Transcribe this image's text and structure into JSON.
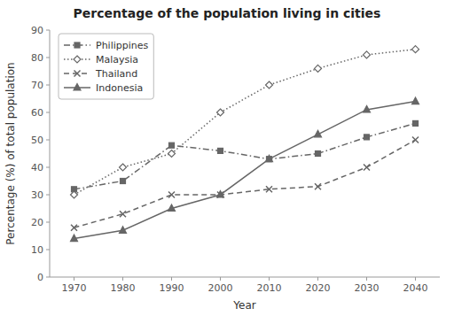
{
  "chart_data": {
    "type": "line",
    "title": "Percentage of the population living in cities",
    "xlabel": "Year",
    "ylabel": "Percentage (%) of total population",
    "x": [
      1970,
      1980,
      1990,
      2000,
      2010,
      2020,
      2030,
      2040
    ],
    "xlim": [
      1965,
      2045
    ],
    "xticks": [
      1970,
      1980,
      1990,
      2000,
      2010,
      2020,
      2030,
      2040
    ],
    "ylim": [
      0,
      90
    ],
    "yticks": [
      0,
      10,
      20,
      30,
      40,
      50,
      60,
      70,
      80,
      90
    ],
    "grid": false,
    "legend": "top-left",
    "series": [
      {
        "name": "Philippines",
        "color": "#666666",
        "line_style": "dashdot",
        "marker": "square",
        "values": [
          32,
          35,
          48,
          46,
          43,
          45,
          51,
          56
        ]
      },
      {
        "name": "Malaysia",
        "color": "#666666",
        "line_style": "dotted",
        "marker": "diamond-open",
        "values": [
          30,
          40,
          45,
          60,
          70,
          76,
          81,
          83
        ]
      },
      {
        "name": "Thailand",
        "color": "#666666",
        "line_style": "dashed",
        "marker": "x",
        "values": [
          18,
          23,
          30,
          30,
          32,
          33,
          40,
          50
        ]
      },
      {
        "name": "Indonesia",
        "color": "#666666",
        "line_style": "solid",
        "marker": "triangle-up",
        "values": [
          14,
          17,
          25,
          30,
          43,
          52,
          61,
          64
        ]
      }
    ]
  }
}
